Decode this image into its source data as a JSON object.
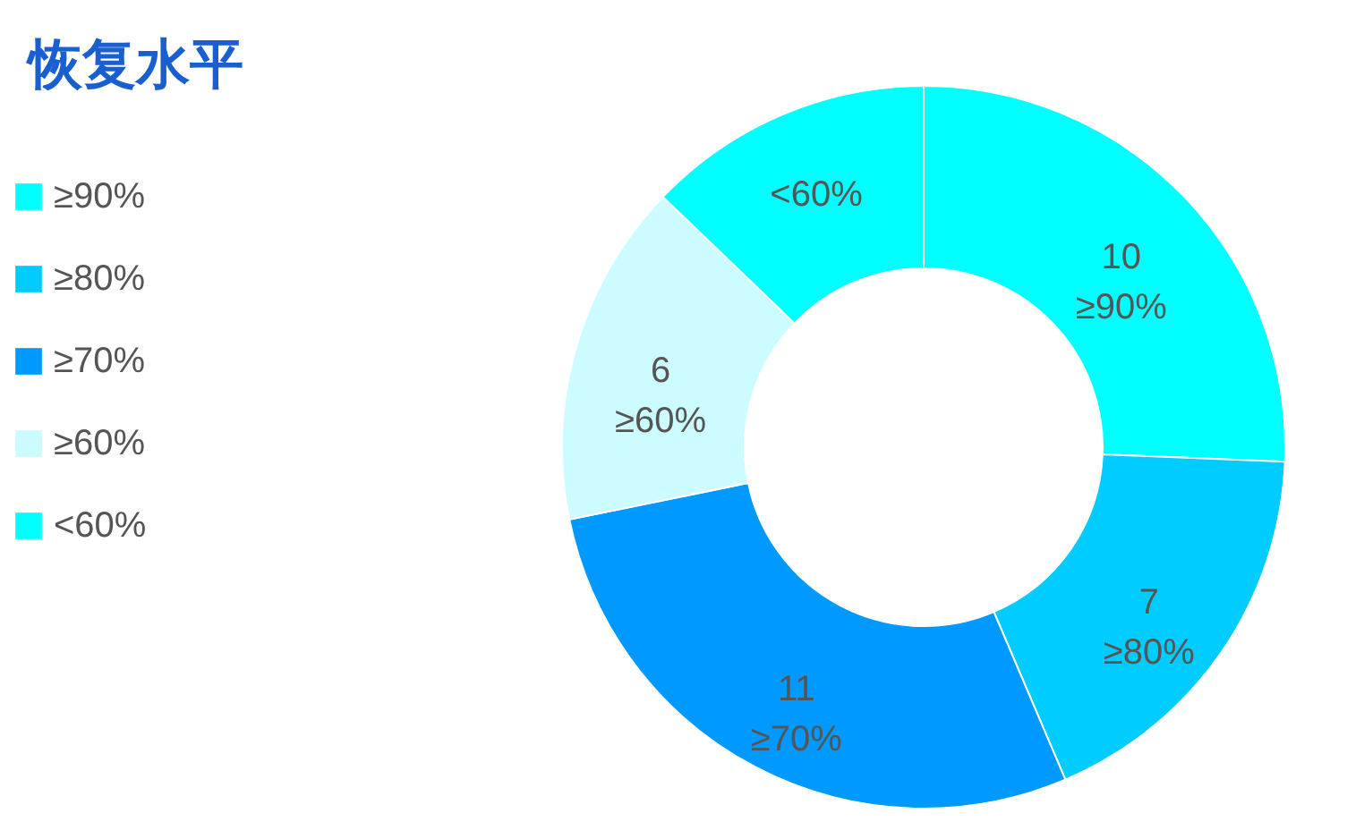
{
  "chart_data": {
    "type": "donut",
    "title": "恢复水平",
    "categories": [
      "≥90%",
      "≥80%",
      "≥70%",
      "≥60%",
      "<60%"
    ],
    "values": [
      10,
      7,
      11,
      6,
      5
    ],
    "colors": [
      "#00ffff",
      "#00ccff",
      "#0099ff",
      "#ccfcff",
      "#00ffff"
    ],
    "value_labels": [
      "10",
      "7",
      "11",
      "6",
      null
    ],
    "legend": "left"
  }
}
